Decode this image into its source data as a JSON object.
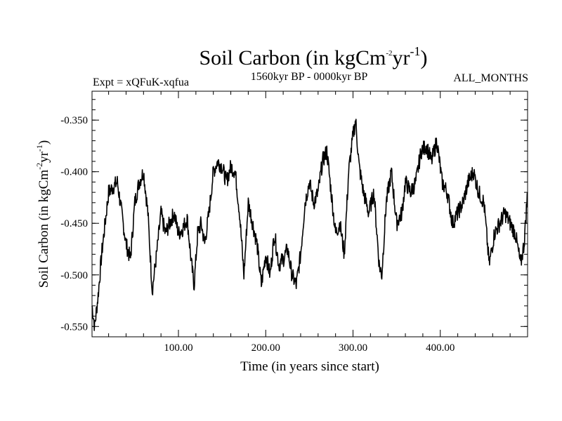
{
  "chart_data": {
    "type": "line",
    "title": "Soil Carbon (in kgCm",
    "title_sup1": "-2",
    "title_mid": "yr",
    "title_sup2": "-1",
    "title_end": ")",
    "subtitle_left": "Expt = xQFuK-xqfua",
    "subtitle_center": "1560kyr BP - 0000kyr BP",
    "subtitle_right": "ALL_MONTHS",
    "xlabel": "Time (in years since start)",
    "ylabel": "Soil Carbon (in kgCm",
    "ylabel_sup1": "-2",
    "ylabel_mid": "yr",
    "ylabel_sup2": "-1",
    "ylabel_end": ")",
    "xlim": [
      1,
      500
    ],
    "ylim": [
      -0.56,
      -0.322
    ],
    "xticks": [
      100,
      200,
      300,
      400
    ],
    "xtick_labels": [
      "100.00",
      "200.00",
      "300.00",
      "400.00"
    ],
    "yticks": [
      -0.55,
      -0.5,
      -0.45,
      -0.4,
      -0.35
    ],
    "ytick_labels": [
      "-0.550",
      "-0.500",
      "-0.450",
      "-0.400",
      "-0.350"
    ],
    "series": [
      {
        "name": "Soil Carbon",
        "x": [
          1,
          4,
          8,
          12,
          16,
          20,
          25,
          30,
          35,
          40,
          45,
          50,
          55,
          60,
          65,
          70,
          75,
          80,
          85,
          90,
          95,
          100,
          105,
          110,
          115,
          118,
          122,
          126,
          130,
          135,
          140,
          145,
          150,
          155,
          160,
          165,
          170,
          175,
          180,
          185,
          190,
          195,
          200,
          205,
          210,
          215,
          220,
          225,
          230,
          235,
          240,
          245,
          250,
          255,
          260,
          265,
          270,
          275,
          280,
          285,
          290,
          295,
          300,
          303,
          307,
          312,
          318,
          324,
          330,
          333,
          338,
          344,
          350,
          356,
          360,
          366,
          372,
          378,
          384,
          390,
          396,
          402,
          408,
          414,
          420,
          426,
          432,
          438,
          444,
          450,
          456,
          462,
          468,
          474,
          480,
          486,
          492,
          496,
          500
        ],
        "y": [
          -0.53,
          -0.55,
          -0.52,
          -0.48,
          -0.45,
          -0.42,
          -0.415,
          -0.41,
          -0.44,
          -0.47,
          -0.485,
          -0.43,
          -0.41,
          -0.4,
          -0.44,
          -0.515,
          -0.48,
          -0.44,
          -0.46,
          -0.45,
          -0.44,
          -0.46,
          -0.455,
          -0.445,
          -0.49,
          -0.51,
          -0.46,
          -0.45,
          -0.47,
          -0.44,
          -0.4,
          -0.39,
          -0.395,
          -0.41,
          -0.395,
          -0.4,
          -0.44,
          -0.5,
          -0.43,
          -0.45,
          -0.47,
          -0.51,
          -0.48,
          -0.5,
          -0.46,
          -0.49,
          -0.485,
          -0.475,
          -0.5,
          -0.51,
          -0.48,
          -0.43,
          -0.41,
          -0.43,
          -0.42,
          -0.39,
          -0.38,
          -0.42,
          -0.46,
          -0.45,
          -0.48,
          -0.4,
          -0.365,
          -0.35,
          -0.395,
          -0.42,
          -0.44,
          -0.42,
          -0.49,
          -0.5,
          -0.43,
          -0.4,
          -0.45,
          -0.44,
          -0.41,
          -0.42,
          -0.41,
          -0.38,
          -0.375,
          -0.39,
          -0.37,
          -0.41,
          -0.42,
          -0.45,
          -0.44,
          -0.43,
          -0.41,
          -0.4,
          -0.42,
          -0.43,
          -0.49,
          -0.46,
          -0.45,
          -0.44,
          -0.45,
          -0.46,
          -0.49,
          -0.47,
          -0.42
        ]
      }
    ]
  }
}
